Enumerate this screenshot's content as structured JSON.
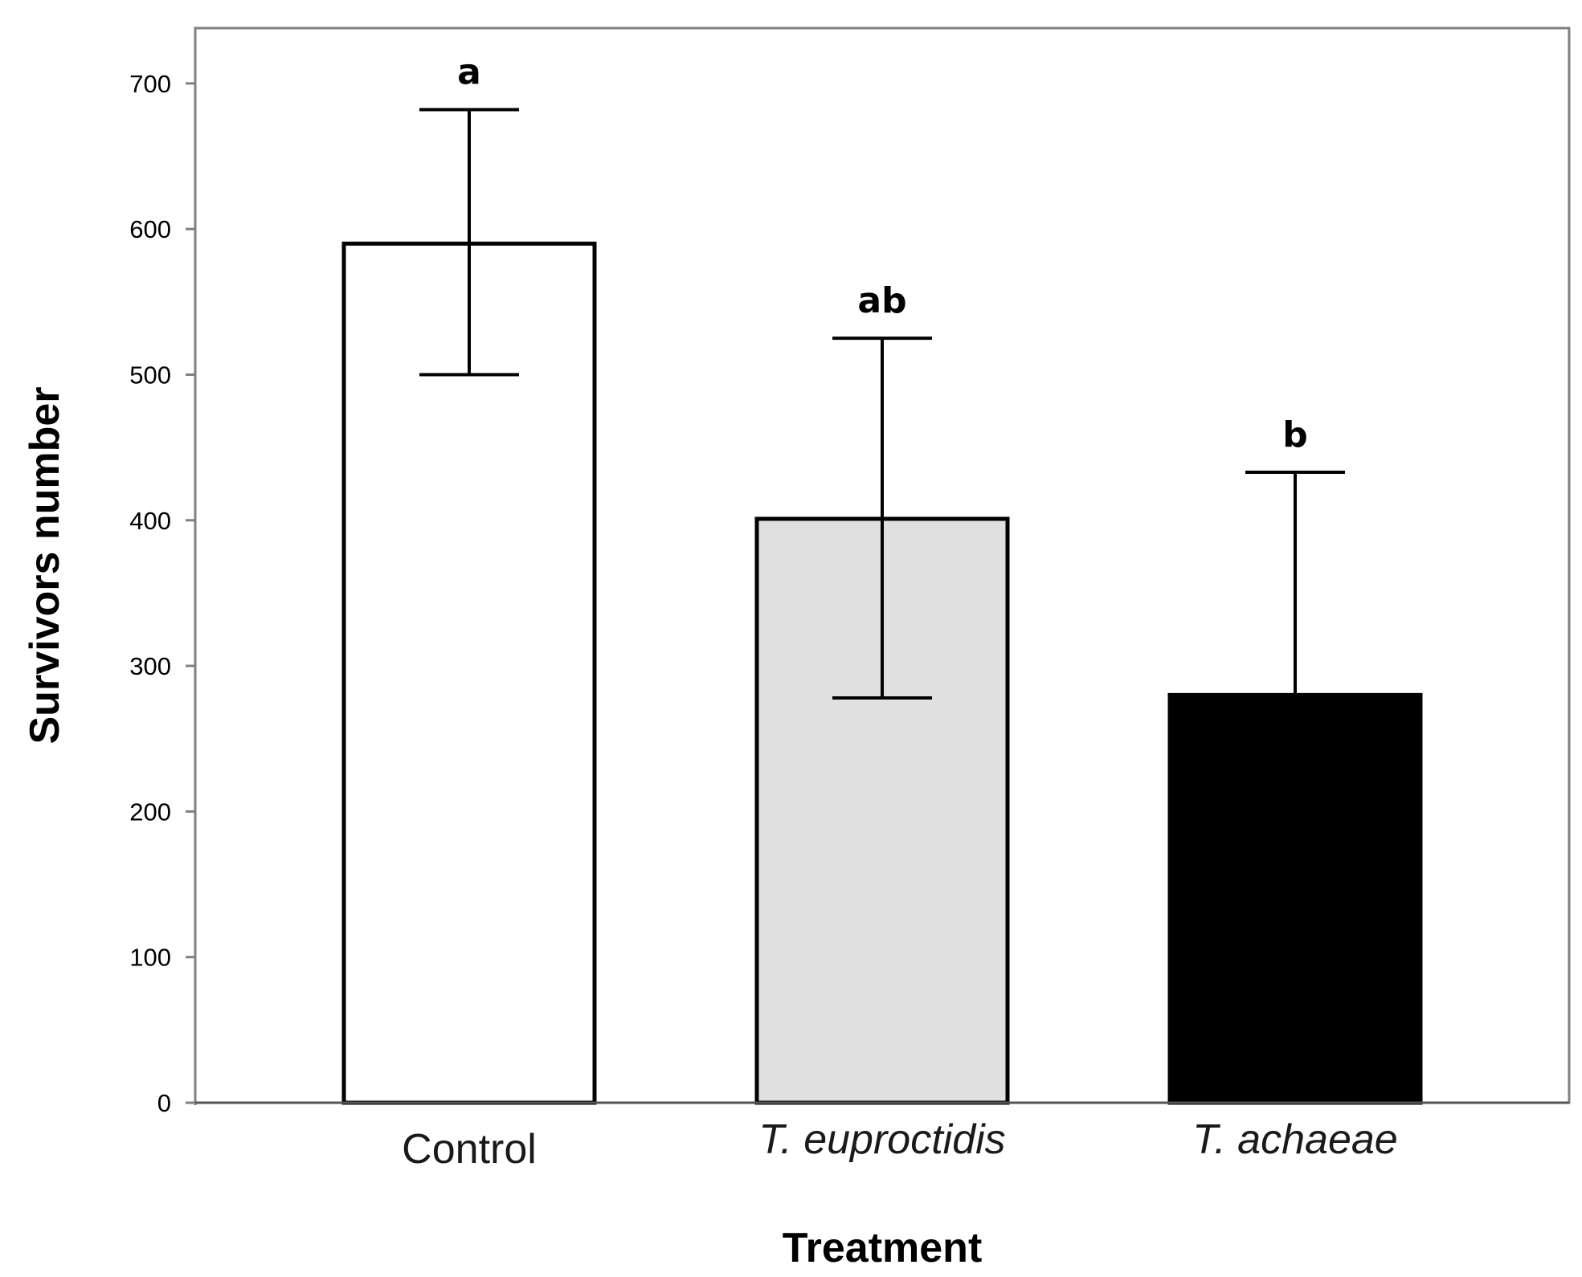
{
  "chart_data": {
    "type": "bar",
    "title": "",
    "xlabel": "Treatment",
    "ylabel": "Survivors number",
    "ylim": [
      0,
      730
    ],
    "yticks": [
      0,
      100,
      200,
      300,
      400,
      500,
      600,
      700
    ],
    "grid": false,
    "legend": "none",
    "categories": [
      "Control",
      "T. euproctidis",
      "T. achaeae"
    ],
    "category_italic": [
      false,
      true,
      true
    ],
    "values": [
      590,
      401,
      280
    ],
    "error_upper": [
      682,
      525,
      433
    ],
    "error_lower": [
      500,
      278,
      null
    ],
    "significance_letters": [
      "a",
      "ab",
      "b"
    ],
    "bar_colors": [
      "#ffffff",
      "#e0e0e0",
      "#000000"
    ]
  }
}
